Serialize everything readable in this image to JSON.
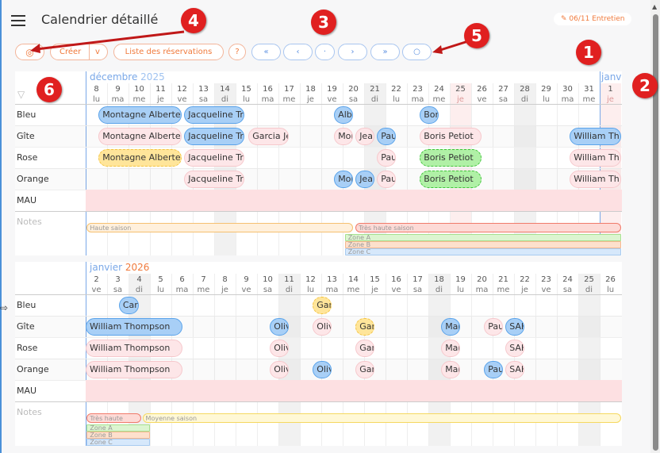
{
  "header": {
    "title": "Calendrier détaillé",
    "badge": "06/11 Entretien",
    "badge_icon": "pencil-icon"
  },
  "toolbar": {
    "view_icon": "eye-icon",
    "create": "Créer",
    "create_dropdown": "v",
    "list": "Liste des réservations",
    "help": "?",
    "first": "«",
    "prev": "‹",
    "today": "·",
    "next": "›",
    "last": "»",
    "search_icon": "search-icon"
  },
  "annotations": [
    "1",
    "2",
    "3",
    "4",
    "5",
    "6"
  ],
  "rows": [
    "Bleu",
    "Gîte",
    "Rose",
    "Orange",
    "MAU"
  ],
  "notes_label": "Notes",
  "colors": {
    "accent": "#f07a3c",
    "blue": "#5b8fe0",
    "annotation": "#e02020"
  },
  "blocks": [
    {
      "month": "décembre",
      "year": "2025",
      "next_month": "janv",
      "days": [
        [
          "8",
          "lu"
        ],
        [
          "9",
          "ma"
        ],
        [
          "10",
          "me"
        ],
        [
          "11",
          "je"
        ],
        [
          "12",
          "ve"
        ],
        [
          "13",
          "sa"
        ],
        [
          "14",
          "di"
        ],
        [
          "15",
          "lu"
        ],
        [
          "16",
          "ma"
        ],
        [
          "17",
          "me"
        ],
        [
          "18",
          "je"
        ],
        [
          "19",
          "ve"
        ],
        [
          "20",
          "sa"
        ],
        [
          "21",
          "di"
        ],
        [
          "22",
          "lu"
        ],
        [
          "23",
          "ma"
        ],
        [
          "24",
          "me"
        ],
        [
          "25",
          "je"
        ],
        [
          "26",
          "ve"
        ],
        [
          "27",
          "sa"
        ],
        [
          "28",
          "di"
        ],
        [
          "29",
          "lu"
        ],
        [
          "30",
          "ma"
        ],
        [
          "31",
          "me"
        ],
        [
          "1",
          "je"
        ]
      ],
      "sundays": [
        6,
        13,
        20
      ],
      "holidays": [
        17,
        24
      ],
      "today": 24,
      "bookings": [
        [
          0,
          0.6,
          4.5,
          "Montagne Alberte",
          "blue"
        ],
        [
          0,
          4.6,
          7.4,
          "Jacqueline Tri",
          "blue"
        ],
        [
          0,
          11.6,
          12.5,
          "Alb",
          "blue"
        ],
        [
          0,
          15.6,
          16.5,
          "Bon",
          "blue"
        ],
        [
          1,
          0.6,
          4.5,
          "Montagne Alberte",
          "pink"
        ],
        [
          1,
          4.6,
          7.4,
          "Jacqueline Tri",
          "blue"
        ],
        [
          1,
          7.6,
          9.5,
          "Garcia Je",
          "pink"
        ],
        [
          1,
          11.6,
          12.5,
          "Mor",
          "pink"
        ],
        [
          1,
          12.6,
          13.5,
          "Jean",
          "pink"
        ],
        [
          1,
          13.6,
          14.5,
          "Pau",
          "blue"
        ],
        [
          1,
          15.6,
          18.5,
          "Boris Petiot",
          "pink"
        ],
        [
          1,
          22.6,
          25,
          "William Th",
          "blue"
        ],
        [
          2,
          0.6,
          4.5,
          "Montagne Alberte",
          "yellow"
        ],
        [
          2,
          4.6,
          7.4,
          "Jacqueline Tri",
          "pink"
        ],
        [
          2,
          13.6,
          14.5,
          "Pau",
          "pink"
        ],
        [
          2,
          15.6,
          18.5,
          "Boris Petiot",
          "green"
        ],
        [
          2,
          22.6,
          25,
          "William Th",
          "pink"
        ],
        [
          3,
          4.6,
          7.4,
          "Jacqueline Tri",
          "pink"
        ],
        [
          3,
          11.6,
          12.5,
          "Mor",
          "blue"
        ],
        [
          3,
          12.6,
          13.5,
          "Jean",
          "blue"
        ],
        [
          3,
          13.6,
          14.5,
          "Pau",
          "pink"
        ],
        [
          3,
          15.6,
          18.5,
          "Boris Petiot",
          "green"
        ],
        [
          3,
          22.6,
          25,
          "William Th",
          "pink"
        ]
      ],
      "notes": [
        [
          0,
          0.05,
          12.5,
          "Haute saison",
          "#fff0dc",
          "#f5c070"
        ],
        [
          0,
          12.6,
          25,
          "Très haute saison",
          "#fddad6",
          "#f07a6a"
        ],
        [
          1,
          12.1,
          25,
          "Zone A",
          "#dcf5d0",
          "#a6e090"
        ],
        [
          2,
          12.1,
          25,
          "Zone B",
          "#fde0cc",
          "#f5b890"
        ],
        [
          3,
          12.1,
          25,
          "Zone C",
          "#d6e8fb",
          "#a8cbf0"
        ]
      ]
    },
    {
      "month": "janvier",
      "year": "2026",
      "days": [
        [
          "2",
          "ve"
        ],
        [
          "3",
          "sa"
        ],
        [
          "4",
          "di"
        ],
        [
          "5",
          "lu"
        ],
        [
          "6",
          "ma"
        ],
        [
          "7",
          "me"
        ],
        [
          "8",
          "je"
        ],
        [
          "9",
          "ve"
        ],
        [
          "10",
          "sa"
        ],
        [
          "11",
          "di"
        ],
        [
          "12",
          "lu"
        ],
        [
          "13",
          "ma"
        ],
        [
          "14",
          "me"
        ],
        [
          "15",
          "je"
        ],
        [
          "16",
          "ve"
        ],
        [
          "17",
          "sa"
        ],
        [
          "18",
          "di"
        ],
        [
          "19",
          "lu"
        ],
        [
          "20",
          "ma"
        ],
        [
          "21",
          "me"
        ],
        [
          "22",
          "je"
        ],
        [
          "23",
          "ve"
        ],
        [
          "24",
          "sa"
        ],
        [
          "25",
          "di"
        ],
        [
          "26",
          "lu"
        ]
      ],
      "sundays": [
        2,
        9,
        16,
        23
      ],
      "holidays": [],
      "bookings": [
        [
          0,
          1.55,
          2.5,
          "Car",
          "blue"
        ],
        [
          0,
          10.6,
          11.5,
          "Gar",
          "yellow"
        ],
        [
          1,
          0,
          4.5,
          "William Thompson",
          "blue"
        ],
        [
          1,
          8.6,
          9.5,
          "Oliv",
          "blue"
        ],
        [
          1,
          10.6,
          11.5,
          "Oliv",
          "pink"
        ],
        [
          1,
          12.6,
          13.5,
          "Gar",
          "yellow"
        ],
        [
          1,
          16.6,
          17.5,
          "Mar",
          "blue"
        ],
        [
          1,
          18.6,
          19.5,
          "Pau",
          "pink"
        ],
        [
          1,
          19.6,
          20.5,
          "SAF",
          "blue"
        ],
        [
          2,
          0,
          4.5,
          "William Thompson",
          "pink"
        ],
        [
          2,
          8.6,
          9.5,
          "Oliv",
          "pink"
        ],
        [
          2,
          12.6,
          13.5,
          "Gar",
          "pink"
        ],
        [
          2,
          16.6,
          17.5,
          "Mar",
          "pink"
        ],
        [
          2,
          19.6,
          20.5,
          "SAF",
          "pink"
        ],
        [
          3,
          0,
          4.5,
          "William Thompson",
          "pink"
        ],
        [
          3,
          8.6,
          9.5,
          "Oliv",
          "pink"
        ],
        [
          3,
          10.6,
          11.5,
          "Oliv",
          "blue"
        ],
        [
          3,
          12.6,
          13.5,
          "Gar",
          "pink"
        ],
        [
          3,
          16.6,
          17.5,
          "Mar",
          "pink"
        ],
        [
          3,
          18.6,
          19.5,
          "Pau",
          "blue"
        ],
        [
          3,
          19.6,
          20.5,
          "SAF",
          "pink"
        ]
      ],
      "notes": [
        [
          0,
          0.05,
          2.6,
          "Très haute",
          "#fddad6",
          "#f07a6a"
        ],
        [
          0,
          2.65,
          25,
          "Moyenne saison",
          "#fff8d6",
          "#f5d860"
        ],
        [
          1,
          0.05,
          3,
          "Zone A",
          "#dcf5d0",
          "#a6e090"
        ],
        [
          2,
          0.05,
          3,
          "Zone B",
          "#fde0cc",
          "#f5b890"
        ],
        [
          3,
          0.05,
          3,
          "Zone C",
          "#d6e8fb",
          "#a8cbf0"
        ]
      ]
    }
  ]
}
